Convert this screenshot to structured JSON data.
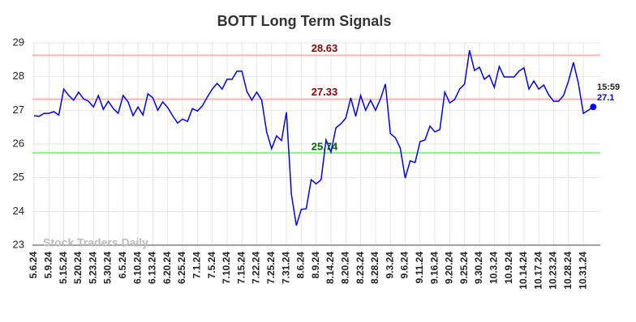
{
  "chart_data": {
    "type": "line",
    "title": "BOTT Long Term Signals",
    "categories": [
      "5.6.24",
      null,
      null,
      "5.9.24",
      null,
      null,
      "5.15.24",
      null,
      null,
      "5.20.24",
      null,
      null,
      "5.23.24",
      null,
      null,
      "5.30.24",
      null,
      null,
      "6.5.24",
      null,
      null,
      "6.10.24",
      null,
      null,
      "6.13.24",
      null,
      null,
      "6.20.24",
      null,
      null,
      "6.25.24",
      null,
      null,
      "7.1.24",
      null,
      null,
      "7.5.24",
      null,
      null,
      "7.10.24",
      null,
      null,
      "7.15.24",
      null,
      null,
      "7.22.24",
      null,
      null,
      "7.25.24",
      null,
      null,
      "7.31.24",
      null,
      null,
      "8.6.24",
      null,
      null,
      "8.9.24",
      null,
      null,
      "8.14.24",
      null,
      null,
      "8.20.24",
      null,
      null,
      "8.23.24",
      null,
      null,
      "8.28.24",
      null,
      null,
      "9.3.24",
      null,
      null,
      "9.6.24",
      null,
      null,
      "9.11.24",
      null,
      null,
      "9.16.24",
      null,
      null,
      "9.20.24",
      null,
      null,
      "9.25.24",
      null,
      null,
      "9.30.24",
      null,
      null,
      "10.3.24",
      null,
      null,
      "10.9.24",
      null,
      null,
      "10.14.24",
      null,
      null,
      "10.17.24",
      null,
      null,
      "10.23.24",
      null,
      null,
      "10.28.24",
      null,
      null,
      "10.31.24",
      null,
      null
    ],
    "values": [
      26.84,
      26.82,
      26.91,
      26.91,
      26.96,
      26.86,
      27.63,
      27.44,
      27.3,
      27.54,
      27.34,
      27.27,
      27.1,
      27.44,
      27.03,
      27.27,
      27.05,
      26.91,
      27.44,
      27.25,
      26.84,
      27.1,
      26.86,
      27.49,
      27.37,
      27.0,
      27.25,
      27.08,
      26.84,
      26.62,
      26.74,
      26.67,
      27.05,
      26.98,
      27.13,
      27.39,
      27.63,
      27.8,
      27.63,
      27.92,
      27.92,
      28.16,
      28.16,
      27.56,
      27.3,
      27.54,
      27.3,
      26.36,
      25.86,
      26.24,
      26.1,
      26.94,
      24.51,
      23.58,
      24.06,
      24.08,
      24.94,
      24.82,
      24.94,
      26.12,
      25.76,
      26.48,
      26.6,
      26.77,
      27.37,
      26.82,
      27.44,
      27.0,
      27.3,
      27.0,
      27.34,
      27.78,
      26.31,
      26.19,
      25.88,
      24.99,
      25.5,
      25.45,
      26.07,
      26.12,
      26.53,
      26.36,
      26.43,
      27.54,
      27.22,
      27.32,
      27.63,
      27.78,
      28.78,
      28.18,
      28.28,
      27.92,
      28.04,
      27.68,
      28.3,
      27.99,
      27.99,
      27.99,
      28.16,
      28.26,
      27.63,
      27.87,
      27.63,
      27.75,
      27.46,
      27.27,
      27.27,
      27.44,
      27.87,
      28.42,
      27.8,
      26.91,
      27.0,
      27.1
    ],
    "color": "#0000ee",
    "ylim": [
      23,
      29
    ],
    "yticks": [
      23,
      24,
      25,
      26,
      27,
      28,
      29
    ],
    "grid": true,
    "hlines": [
      {
        "value": 28.63,
        "color": "#ffb3b3",
        "text_color": "#8b0000"
      },
      {
        "value": 27.33,
        "color": "#ffb3b3",
        "text_color": "#8b0000"
      },
      {
        "value": 25.74,
        "color": "#90ee90",
        "text_color": "#006400"
      }
    ],
    "time_label": "15:59",
    "watermark": "Stock Traders Daily"
  }
}
